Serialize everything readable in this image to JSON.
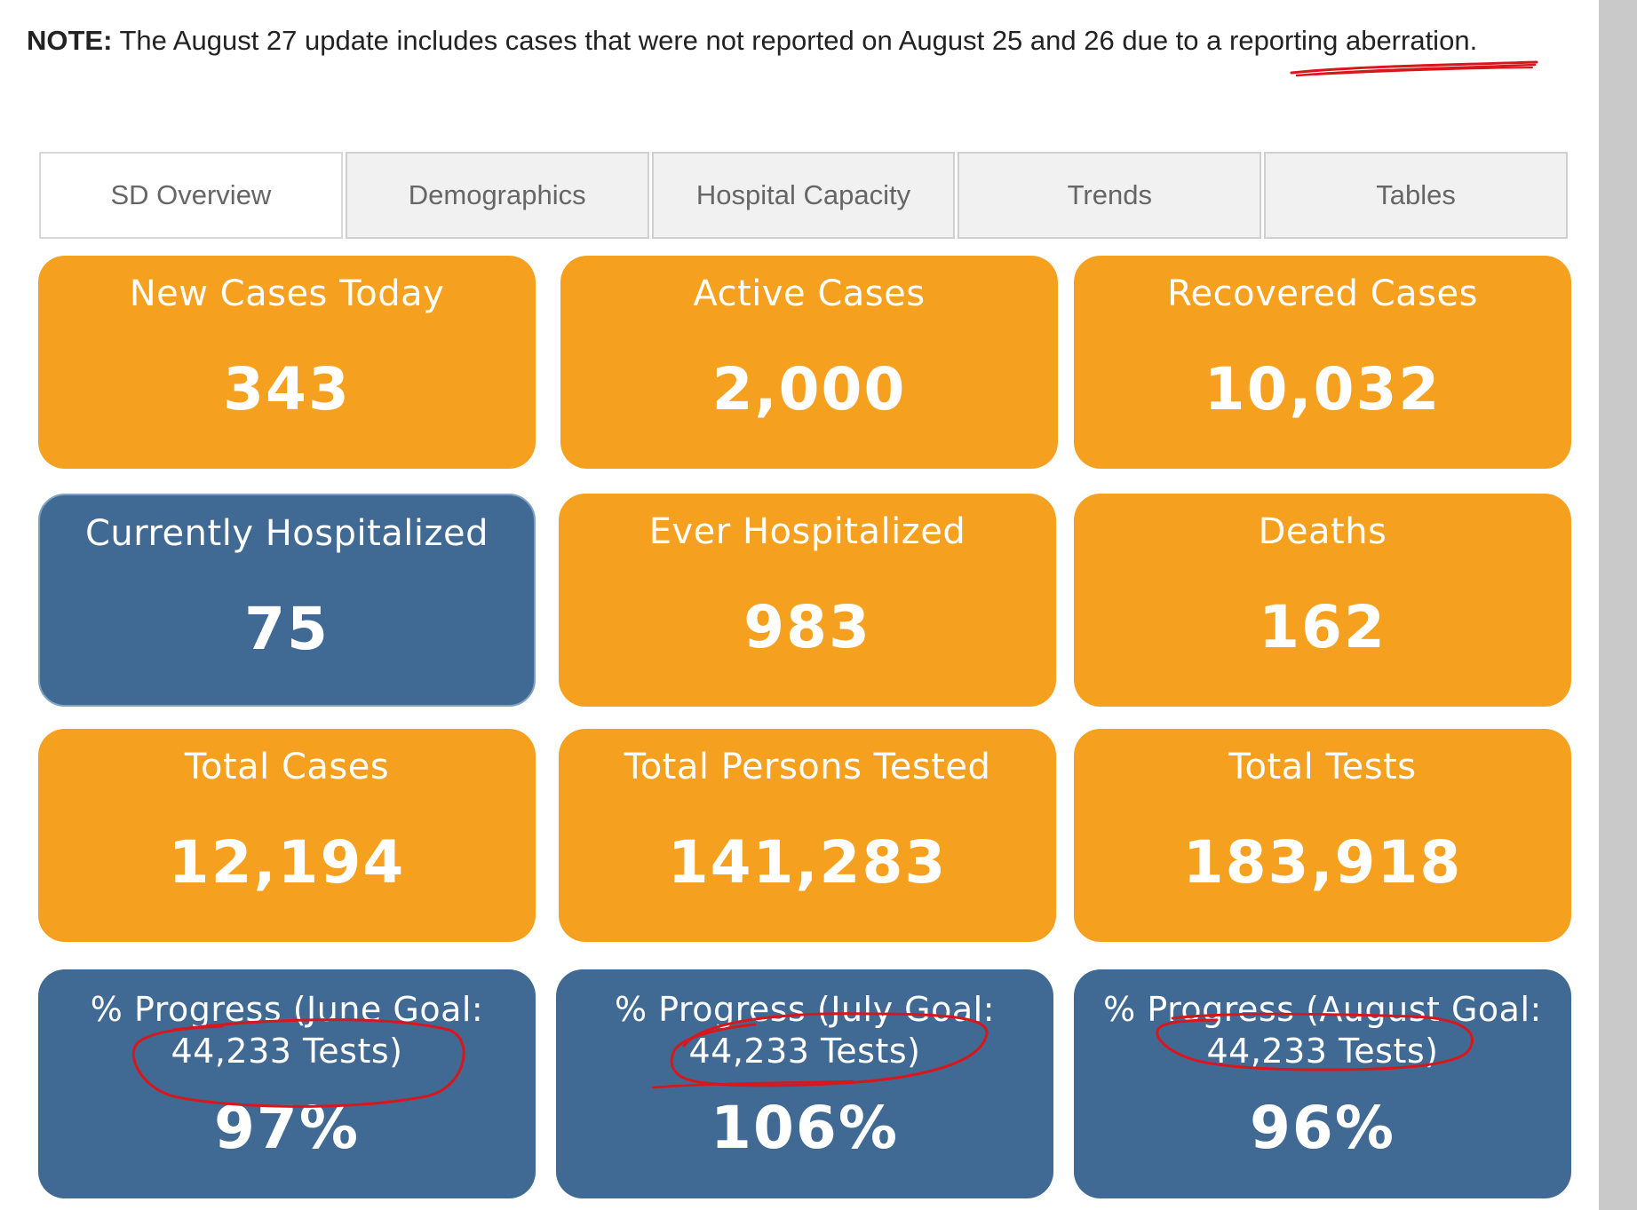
{
  "note": {
    "prefix": "NOTE:",
    "text": " The August 27 update includes cases that were not reported on August 25 and 26 due to a ",
    "link": "reporting aberration",
    "suffix": "."
  },
  "tabs": [
    {
      "label": "SD Overview",
      "active": true
    },
    {
      "label": "Demographics"
    },
    {
      "label": "Hospital Capacity"
    },
    {
      "label": "Trends"
    },
    {
      "label": "Tables"
    }
  ],
  "cards": {
    "new_cases_today": {
      "title": "New Cases Today",
      "value": "343"
    },
    "active_cases": {
      "title": "Active Cases",
      "value": "2,000"
    },
    "recovered_cases": {
      "title": "Recovered Cases",
      "value": "10,032"
    },
    "currently_hospitalized": {
      "title": "Currently Hospitalized",
      "value": "75"
    },
    "ever_hospitalized": {
      "title": "Ever Hospitalized",
      "value": "983"
    },
    "deaths": {
      "title": "Deaths",
      "value": "162"
    },
    "total_cases": {
      "title": "Total Cases",
      "value": "12,194"
    },
    "total_persons_tested": {
      "title": "Total Persons Tested",
      "value": "141,283"
    },
    "total_tests": {
      "title": "Total Tests",
      "value": "183,918"
    },
    "progress_june": {
      "title_line1": "% Progress (June Goal:",
      "title_line2": "44,233 Tests)",
      "value": "97%"
    },
    "progress_july": {
      "title_line1": "% Progress (July Goal:",
      "title_line2": "44,233 Tests)",
      "value": "106%"
    },
    "progress_august": {
      "title_line1": "% Progress (August Goal:",
      "title_line2": "44,233 Tests)",
      "value": "96%"
    }
  },
  "colors": {
    "orange": "#f5a11f",
    "blue": "#406a94",
    "annotation_red": "#d8161b"
  }
}
